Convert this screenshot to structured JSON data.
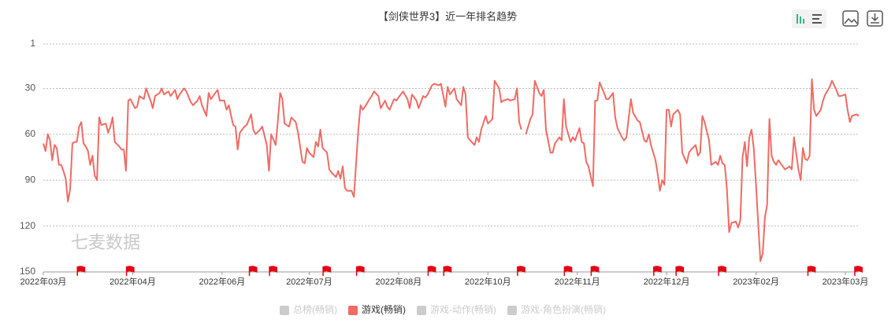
{
  "chart_data": {
    "type": "line",
    "title": "【剑侠世界3】近一年排名趋势",
    "watermark": "七麦数据",
    "y_inverted": true,
    "grid": true,
    "ylim": [
      1,
      150
    ],
    "yticks": [
      1,
      30,
      60,
      90,
      120,
      150
    ],
    "xlim": [
      0,
      365
    ],
    "xticks": [
      {
        "value": 0,
        "label": "2022年03月"
      },
      {
        "value": 40,
        "label": "2022年04月"
      },
      {
        "value": 80,
        "label": "2022年06月"
      },
      {
        "value": 119,
        "label": "2022年07月"
      },
      {
        "value": 159,
        "label": "2022年08月"
      },
      {
        "value": 199,
        "label": "2022年10月"
      },
      {
        "value": 239,
        "label": "2022年11月"
      },
      {
        "value": 279,
        "label": "2022年12月"
      },
      {
        "value": 319,
        "label": "2023年02月"
      },
      {
        "value": 359,
        "label": "2023年03月"
      }
    ],
    "flags": [
      17,
      39,
      94,
      103,
      127,
      142,
      174,
      181,
      214,
      235,
      247,
      275,
      285,
      304,
      344,
      365
    ],
    "flag_color": "#e60012",
    "x": [
      0,
      1,
      2,
      3,
      4,
      5,
      6,
      7,
      8,
      9,
      10,
      11,
      12,
      13,
      14,
      15,
      16,
      17,
      18,
      19,
      20,
      21,
      22,
      23,
      24,
      25,
      26,
      28,
      29,
      30,
      31,
      32,
      34,
      35,
      36,
      37,
      38,
      39,
      41,
      42,
      43,
      45,
      46,
      48,
      49,
      50,
      52,
      53,
      54,
      56,
      57,
      59,
      60,
      61,
      63,
      64,
      66,
      67,
      69,
      70,
      71,
      73,
      74,
      75,
      77,
      78,
      79,
      81,
      82,
      83,
      85,
      86,
      87,
      88,
      90,
      91,
      93,
      94,
      95,
      97,
      98,
      100,
      101,
      102,
      104,
      105,
      106,
      107,
      108,
      110,
      111,
      113,
      114,
      116,
      117,
      118,
      119,
      121,
      122,
      123,
      124,
      125,
      127,
      128,
      129,
      131,
      132,
      133,
      134,
      135,
      136,
      138,
      139,
      141,
      142,
      143,
      144,
      146,
      147,
      148,
      150,
      151,
      153,
      154,
      155,
      157,
      158,
      160,
      161,
      163,
      164,
      165,
      167,
      168,
      170,
      171,
      172,
      174,
      175,
      177,
      178,
      180,
      181,
      182,
      184,
      185,
      187,
      188,
      189,
      190,
      191,
      193,
      194,
      195,
      196,
      198,
      199,
      201,
      202,
      204,
      205,
      206,
      208,
      209,
      211,
      212,
      213,
      214,
      215,
      216,
      218,
      219,
      220,
      222,
      223,
      224,
      225,
      227,
      228,
      229,
      231,
      232,
      233,
      234,
      236,
      237,
      238,
      240,
      241,
      242,
      243,
      244,
      246,
      247,
      248,
      249,
      251,
      252,
      253,
      255,
      256,
      257,
      259,
      260,
      261,
      263,
      264,
      266,
      267,
      269,
      270,
      271,
      272,
      274,
      275,
      276,
      277,
      278,
      279,
      280,
      281,
      282,
      284,
      285,
      286,
      288,
      289,
      290,
      292,
      293,
      294,
      295,
      296,
      298,
      299,
      301,
      302,
      303,
      304,
      305,
      306,
      307,
      308,
      310,
      311,
      312,
      313,
      314,
      315,
      316,
      317,
      318,
      319,
      320,
      321,
      322,
      323,
      324,
      325,
      326,
      327,
      328,
      329,
      331,
      332,
      334,
      335,
      336,
      338,
      339,
      340,
      341,
      342,
      343,
      344,
      345,
      346,
      348,
      349,
      350,
      352,
      353,
      355,
      356,
      357,
      359,
      360,
      361,
      362,
      364,
      365
    ],
    "series": [
      {
        "name": "总榜(畅销)",
        "color": "#cccccc",
        "visible": false
      },
      {
        "name": "游戏(畅销)",
        "color": "#ef6b64",
        "visible": true,
        "values": [
          66,
          71,
          60,
          64,
          77,
          67,
          69,
          80,
          80,
          84,
          89,
          104,
          96,
          66,
          65,
          65,
          55,
          52,
          66,
          68,
          71,
          80,
          74,
          87,
          90,
          49,
          54,
          53,
          59,
          55,
          49,
          65,
          68,
          70,
          70,
          84,
          38,
          37,
          43,
          42,
          35,
          37,
          30,
          38,
          43,
          35,
          33,
          30,
          34,
          32,
          35,
          31,
          37,
          34,
          30,
          32,
          39,
          41,
          38,
          35,
          41,
          48,
          33,
          37,
          33,
          31,
          38,
          38,
          44,
          41,
          54,
          55,
          70,
          59,
          55,
          54,
          47,
          57,
          60,
          57,
          55,
          67,
          84,
          60,
          67,
          51,
          33,
          37,
          53,
          55,
          49,
          52,
          59,
          78,
          79,
          69,
          72,
          75,
          65,
          68,
          57,
          69,
          72,
          83,
          85,
          88,
          84,
          89,
          81,
          95,
          97,
          97,
          101,
          57,
          41,
          44,
          42,
          37,
          35,
          32,
          35,
          43,
          38,
          42,
          44,
          37,
          38,
          34,
          32,
          37,
          43,
          34,
          38,
          43,
          35,
          36,
          34,
          28,
          27,
          28,
          27,
          42,
          29,
          34,
          30,
          37,
          41,
          29,
          34,
          62,
          64,
          67,
          62,
          65,
          57,
          48,
          53,
          50,
          25,
          30,
          39,
          38,
          37,
          38,
          37,
          30,
          52,
          57,
          null,
          60,
          50,
          47,
          25,
          33,
          35,
          31,
          57,
          72,
          72,
          66,
          62,
          64,
          37,
          55,
          65,
          62,
          64,
          56,
          65,
          66,
          78,
          81,
          94,
          38,
          38,
          26,
          33,
          37,
          37,
          33,
          49,
          56,
          62,
          64,
          62,
          37,
          46,
          51,
          52,
          64,
          65,
          60,
          67,
          77,
          86,
          97,
          90,
          93,
          44,
          44,
          55,
          47,
          44,
          47,
          72,
          79,
          72,
          70,
          67,
          74,
          72,
          48,
          52,
          64,
          80,
          78,
          80,
          74,
          79,
          80,
          96,
          124,
          118,
          117,
          121,
          116,
          75,
          65,
          81,
          62,
          57,
          69,
          93,
          119,
          143,
          138,
          114,
          106,
          50,
          74,
          78,
          80,
          77,
          81,
          83,
          81,
          83,
          62,
          83,
          90,
          69,
          76,
          77,
          74,
          24,
          44,
          48,
          44,
          38,
          34,
          29,
          25,
          31,
          35,
          35,
          34,
          44,
          52,
          48,
          47,
          48
        ]
      },
      {
        "name": "游戏-动作(畅销)",
        "color": "#cccccc",
        "visible": false
      },
      {
        "name": "游戏-角色扮演(畅销)",
        "color": "#cccccc",
        "visible": false
      }
    ]
  }
}
